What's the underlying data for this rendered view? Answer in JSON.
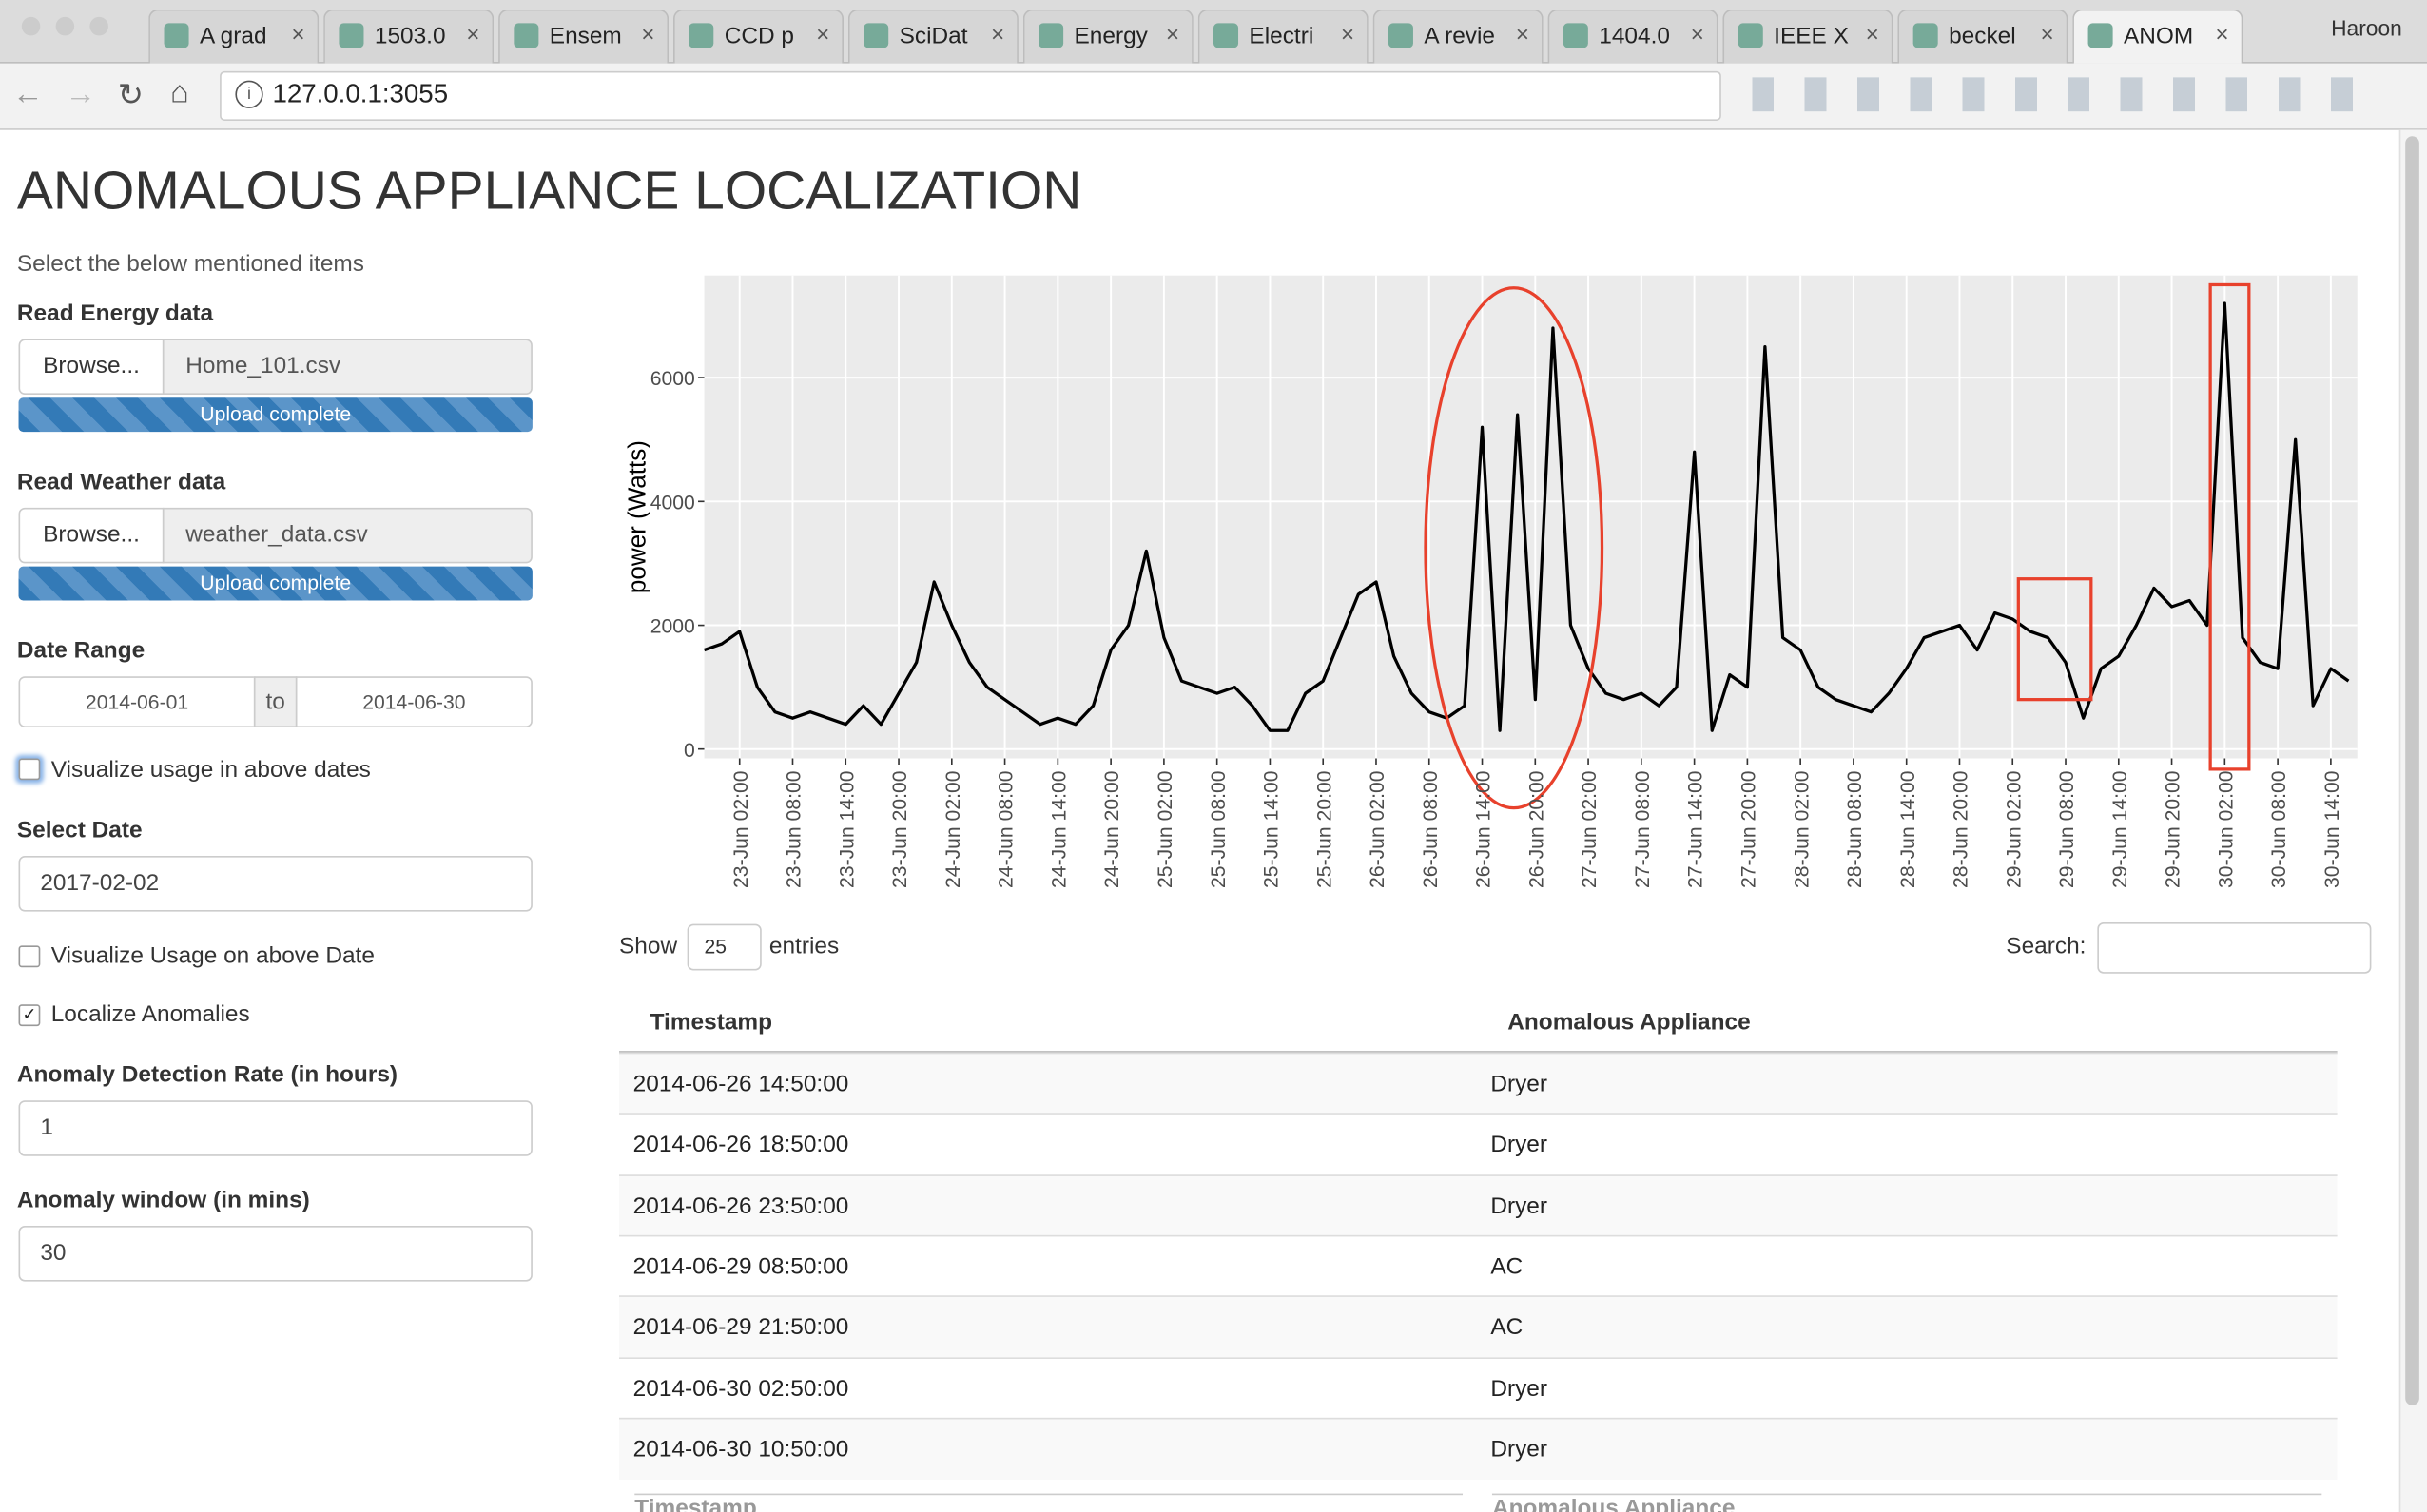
{
  "browser": {
    "tabs": [
      "A grad",
      "1503.0",
      "Ensem",
      "CCD p",
      "SciDat",
      "Energy",
      "Electri",
      "A revie",
      "1404.0",
      "IEEE X",
      "beckel",
      "ANOM"
    ],
    "profile": "Haroon",
    "url": "127.0.0.1:3055"
  },
  "sidebar": {
    "title": "ANOMALOUS APPLIANCE LOCALIZATION",
    "instruction": "Select the below mentioned items",
    "energy": {
      "label": "Read Energy data",
      "button": "Browse...",
      "file": "Home_101.csv",
      "status": "Upload complete"
    },
    "weather": {
      "label": "Read Weather data",
      "button": "Browse...",
      "file": "weather_data.csv",
      "status": "Upload complete"
    },
    "date_range": {
      "label": "Date Range",
      "start": "2014-06-01",
      "separator": "to",
      "end": "2014-06-30"
    },
    "visualize_range": {
      "label": "Visualize usage in above dates",
      "checked": false
    },
    "select_date": {
      "label": "Select Date",
      "value": "2017-02-02"
    },
    "visualize_date": {
      "label": "Visualize Usage on above Date",
      "checked": false
    },
    "localize": {
      "label": "Localize Anomalies",
      "checked": true
    },
    "rate": {
      "label": "Anomaly Detection Rate (in hours)",
      "value": "1"
    },
    "window": {
      "label": "Anomaly window (in mins)",
      "value": "30"
    }
  },
  "chart_data": {
    "type": "line",
    "y_label": "power (Watts)",
    "color": "#000000",
    "grid": true,
    "x": [
      "22-Jun 22:00",
      "23-Jun 00:00",
      "23-Jun 02:00",
      "23-Jun 04:00",
      "23-Jun 06:00",
      "23-Jun 08:00",
      "23-Jun 10:00",
      "23-Jun 12:00",
      "23-Jun 14:00",
      "23-Jun 16:00",
      "23-Jun 18:00",
      "23-Jun 20:00",
      "23-Jun 22:00",
      "24-Jun 00:00",
      "24-Jun 02:00",
      "24-Jun 04:00",
      "24-Jun 06:00",
      "24-Jun 08:00",
      "24-Jun 10:00",
      "24-Jun 12:00",
      "24-Jun 14:00",
      "24-Jun 16:00",
      "24-Jun 18:00",
      "24-Jun 20:00",
      "24-Jun 22:00",
      "25-Jun 00:00",
      "25-Jun 02:00",
      "25-Jun 04:00",
      "25-Jun 06:00",
      "25-Jun 08:00",
      "25-Jun 10:00",
      "25-Jun 12:00",
      "25-Jun 14:00",
      "25-Jun 16:00",
      "25-Jun 18:00",
      "25-Jun 20:00",
      "25-Jun 22:00",
      "26-Jun 00:00",
      "26-Jun 02:00",
      "26-Jun 04:00",
      "26-Jun 06:00",
      "26-Jun 08:00",
      "26-Jun 10:00",
      "26-Jun 12:00",
      "26-Jun 14:00",
      "26-Jun 16:00",
      "26-Jun 18:00",
      "26-Jun 20:00",
      "26-Jun 22:00",
      "27-Jun 00:00",
      "27-Jun 02:00",
      "27-Jun 04:00",
      "27-Jun 06:00",
      "27-Jun 08:00",
      "27-Jun 10:00",
      "27-Jun 12:00",
      "27-Jun 14:00",
      "27-Jun 16:00",
      "27-Jun 18:00",
      "27-Jun 20:00",
      "27-Jun 22:00",
      "28-Jun 00:00",
      "28-Jun 02:00",
      "28-Jun 04:00",
      "28-Jun 06:00",
      "28-Jun 08:00",
      "28-Jun 10:00",
      "28-Jun 12:00",
      "28-Jun 14:00",
      "28-Jun 16:00",
      "28-Jun 18:00",
      "28-Jun 20:00",
      "28-Jun 22:00",
      "29-Jun 00:00",
      "29-Jun 02:00",
      "29-Jun 04:00",
      "29-Jun 06:00",
      "29-Jun 08:00",
      "29-Jun 10:00",
      "29-Jun 12:00",
      "29-Jun 14:00",
      "29-Jun 16:00",
      "29-Jun 18:00",
      "29-Jun 20:00",
      "29-Jun 22:00",
      "30-Jun 00:00",
      "30-Jun 02:00",
      "30-Jun 04:00",
      "30-Jun 06:00",
      "30-Jun 08:00",
      "30-Jun 10:00",
      "30-Jun 12:00",
      "30-Jun 14:00",
      "30-Jun 16:00"
    ],
    "values": [
      1600,
      1700,
      1900,
      1000,
      600,
      500,
      600,
      500,
      400,
      700,
      400,
      900,
      1400,
      2700,
      2000,
      1400,
      1000,
      800,
      600,
      400,
      500,
      400,
      700,
      1600,
      2000,
      3200,
      1800,
      1100,
      1000,
      900,
      1000,
      700,
      300,
      300,
      900,
      1100,
      1800,
      2500,
      2700,
      1500,
      900,
      600,
      500,
      700,
      5200,
      300,
      5400,
      800,
      6800,
      2000,
      1300,
      900,
      800,
      900,
      700,
      1000,
      4800,
      300,
      1200,
      1000,
      6500,
      1800,
      1600,
      1000,
      800,
      700,
      600,
      900,
      1300,
      1800,
      1900,
      2000,
      1600,
      2200,
      2100,
      1900,
      1800,
      1400,
      500,
      1300,
      1500,
      2000,
      2600,
      2300,
      2400,
      2000,
      7200,
      1800,
      1400,
      1300,
      5000,
      700,
      1300,
      1100
    ],
    "xlim": [
      "22-Jun 22:00",
      "30-Jun 17:00"
    ],
    "xticks": [
      "23-Jun 02:00",
      "23-Jun 08:00",
      "23-Jun 14:00",
      "23-Jun 20:00",
      "24-Jun 02:00",
      "24-Jun 08:00",
      "24-Jun 14:00",
      "24-Jun 20:00",
      "25-Jun 02:00",
      "25-Jun 08:00",
      "25-Jun 14:00",
      "25-Jun 20:00",
      "26-Jun 02:00",
      "26-Jun 08:00",
      "26-Jun 14:00",
      "26-Jun 20:00",
      "27-Jun 02:00",
      "27-Jun 08:00",
      "27-Jun 14:00",
      "27-Jun 20:00",
      "28-Jun 02:00",
      "28-Jun 08:00",
      "28-Jun 14:00",
      "28-Jun 20:00",
      "29-Jun 02:00",
      "29-Jun 08:00",
      "29-Jun 14:00",
      "29-Jun 20:00",
      "30-Jun 02:00",
      "30-Jun 08:00",
      "30-Jun 14:00"
    ],
    "ylim": [
      -150,
      7650
    ],
    "yticks": [
      0,
      2000,
      4000,
      6000
    ]
  },
  "table": {
    "show": "Show",
    "length": "25",
    "entries": "entries",
    "search": "Search:",
    "columns": [
      "Timestamp",
      "Anomalous Appliance"
    ],
    "rows": [
      [
        "2014-06-26 14:50:00",
        "Dryer"
      ],
      [
        "2014-06-26 18:50:00",
        "Dryer"
      ],
      [
        "2014-06-26 23:50:00",
        "Dryer"
      ],
      [
        "2014-06-29 08:50:00",
        "AC"
      ],
      [
        "2014-06-29 21:50:00",
        "AC"
      ],
      [
        "2014-06-30 02:50:00",
        "Dryer"
      ],
      [
        "2014-06-30 10:50:00",
        "Dryer"
      ]
    ]
  }
}
